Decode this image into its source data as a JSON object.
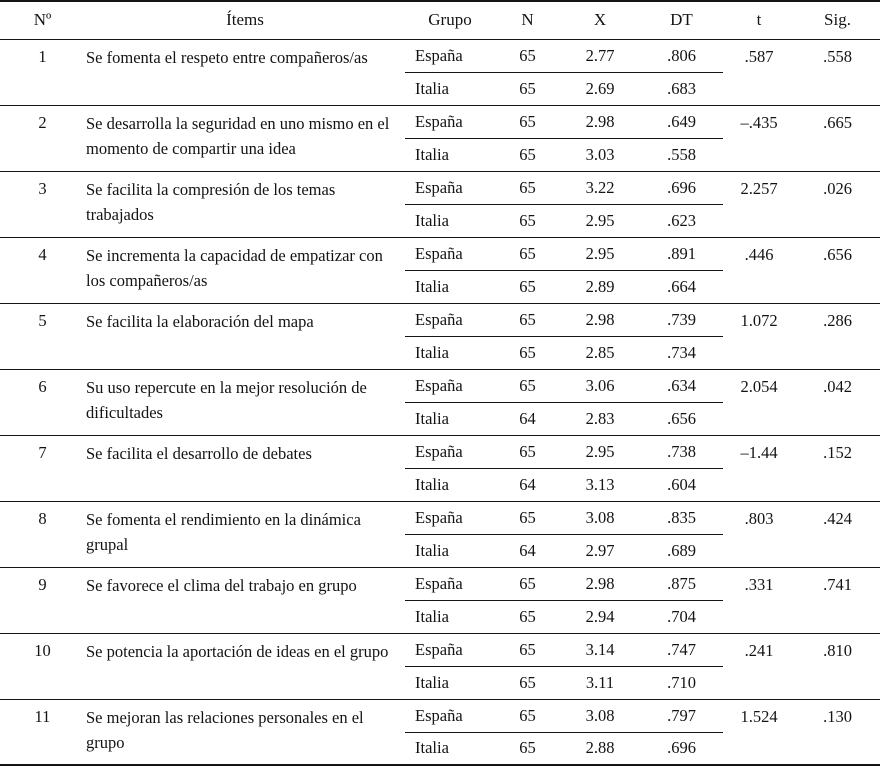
{
  "table": {
    "columns": [
      "Nº",
      "Ítems",
      "Grupo",
      "N",
      "X",
      "DT",
      "t",
      "Sig."
    ],
    "rows": [
      {
        "num": "1",
        "item": "Se fomenta el respeto entre compañeros/as",
        "t": ".587",
        "sig": ".558",
        "groups": [
          {
            "grupo": "España",
            "n": "65",
            "x": "2.77",
            "dt": ".806"
          },
          {
            "grupo": "Italia",
            "n": "65",
            "x": "2.69",
            "dt": ".683"
          }
        ]
      },
      {
        "num": "2",
        "item": "Se desarrolla la seguridad en uno mismo en el momento de compartir una idea",
        "t": "–.435",
        "sig": ".665",
        "groups": [
          {
            "grupo": "España",
            "n": "65",
            "x": "2.98",
            "dt": ".649"
          },
          {
            "grupo": "Italia",
            "n": "65",
            "x": "3.03",
            "dt": ".558"
          }
        ]
      },
      {
        "num": "3",
        "item": "Se facilita la compresión de los temas trabajados",
        "t": "2.257",
        "sig": ".026",
        "groups": [
          {
            "grupo": "España",
            "n": "65",
            "x": "3.22",
            "dt": ".696"
          },
          {
            "grupo": "Italia",
            "n": "65",
            "x": "2.95",
            "dt": ".623"
          }
        ]
      },
      {
        "num": "4",
        "item": "Se incrementa la capacidad de empatizar con los compañeros/as",
        "t": ".446",
        "sig": ".656",
        "groups": [
          {
            "grupo": "España",
            "n": "65",
            "x": "2.95",
            "dt": ".891"
          },
          {
            "grupo": "Italia",
            "n": "65",
            "x": "2.89",
            "dt": ".664"
          }
        ]
      },
      {
        "num": "5",
        "item": "Se facilita la elaboración del mapa",
        "t": "1.072",
        "sig": ".286",
        "groups": [
          {
            "grupo": "España",
            "n": "65",
            "x": "2.98",
            "dt": ".739"
          },
          {
            "grupo": "Italia",
            "n": "65",
            "x": "2.85",
            "dt": ".734"
          }
        ]
      },
      {
        "num": "6",
        "item": "Su uso repercute en la mejor resolución de dificultades",
        "t": "2.054",
        "sig": ".042",
        "groups": [
          {
            "grupo": "España",
            "n": "65",
            "x": "3.06",
            "dt": ".634"
          },
          {
            "grupo": "Italia",
            "n": "64",
            "x": "2.83",
            "dt": ".656"
          }
        ]
      },
      {
        "num": "7",
        "item": "Se facilita el desarrollo de debates",
        "t": "–1.44",
        "sig": ".152",
        "groups": [
          {
            "grupo": "España",
            "n": "65",
            "x": "2.95",
            "dt": ".738"
          },
          {
            "grupo": "Italia",
            "n": "64",
            "x": "3.13",
            "dt": ".604"
          }
        ]
      },
      {
        "num": "8",
        "item": "Se fomenta el rendimiento en la dinámica grupal",
        "t": ".803",
        "sig": ".424",
        "groups": [
          {
            "grupo": "España",
            "n": "65",
            "x": "3.08",
            "dt": ".835"
          },
          {
            "grupo": "Italia",
            "n": "64",
            "x": "2.97",
            "dt": ".689"
          }
        ]
      },
      {
        "num": "9",
        "item": "Se favorece el clima del trabajo en grupo",
        "t": ".331",
        "sig": ".741",
        "groups": [
          {
            "grupo": "España",
            "n": "65",
            "x": "2.98",
            "dt": ".875"
          },
          {
            "grupo": "Italia",
            "n": "65",
            "x": "2.94",
            "dt": ".704"
          }
        ]
      },
      {
        "num": "10",
        "item": "Se potencia la aportación de ideas en el grupo",
        "t": ".241",
        "sig": ".810",
        "groups": [
          {
            "grupo": "España",
            "n": "65",
            "x": "3.14",
            "dt": ".747"
          },
          {
            "grupo": "Italia",
            "n": "65",
            "x": "3.11",
            "dt": ".710"
          }
        ]
      },
      {
        "num": "11",
        "item": "Se mejoran las relaciones personales en el grupo",
        "t": "1.524",
        "sig": ".130",
        "groups": [
          {
            "grupo": "España",
            "n": "65",
            "x": "3.08",
            "dt": ".797"
          },
          {
            "grupo": "Italia",
            "n": "65",
            "x": "2.88",
            "dt": ".696"
          }
        ]
      }
    ]
  }
}
